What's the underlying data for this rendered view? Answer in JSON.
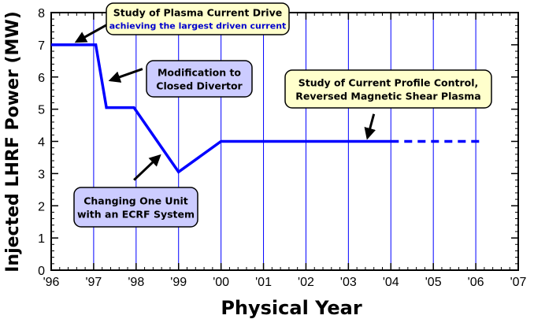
{
  "chart_data": {
    "type": "line",
    "title": "",
    "xlabel": "Physical Year",
    "ylabel": "Injected LHRF Power (MW)",
    "xlim": [
      1996,
      2007
    ],
    "ylim": [
      0,
      8
    ],
    "x_ticks": [
      {
        "value": 1996,
        "label": "'96"
      },
      {
        "value": 1997,
        "label": "'97"
      },
      {
        "value": 1998,
        "label": "'98"
      },
      {
        "value": 1999,
        "label": "'99"
      },
      {
        "value": 2000,
        "label": "'00"
      },
      {
        "value": 2001,
        "label": "'01"
      },
      {
        "value": 2002,
        "label": "'02"
      },
      {
        "value": 2003,
        "label": "'03"
      },
      {
        "value": 2004,
        "label": "'04"
      },
      {
        "value": 2005,
        "label": "'05"
      },
      {
        "value": 2006,
        "label": "'06"
      },
      {
        "value": 2007,
        "label": "'07"
      }
    ],
    "y_ticks": [
      {
        "value": 0,
        "label": "0"
      },
      {
        "value": 1,
        "label": "1"
      },
      {
        "value": 2,
        "label": "2"
      },
      {
        "value": 3,
        "label": "3"
      },
      {
        "value": 4,
        "label": "4"
      },
      {
        "value": 5,
        "label": "5"
      },
      {
        "value": 6,
        "label": "6"
      },
      {
        "value": 7,
        "label": "7"
      },
      {
        "value": 8,
        "label": "8"
      }
    ],
    "grid": "vertical",
    "series": [
      {
        "style": "solid",
        "color": "#0000ff",
        "points": [
          {
            "x": 1996.0,
            "y": 7.0
          },
          {
            "x": 1997.05,
            "y": 7.0
          },
          {
            "x": 1997.3,
            "y": 5.05
          },
          {
            "x": 1997.95,
            "y": 5.05
          },
          {
            "x": 1999.0,
            "y": 3.05
          },
          {
            "x": 2000.0,
            "y": 4.0
          },
          {
            "x": 2004.0,
            "y": 4.0
          }
        ]
      },
      {
        "style": "dashed",
        "color": "#0000ff",
        "points": [
          {
            "x": 2004.0,
            "y": 4.0
          },
          {
            "x": 2006.2,
            "y": 4.0
          }
        ]
      }
    ],
    "annotations": [
      {
        "id": "plasma-current-drive",
        "lines": [
          "Study of Plasma Current Drive"
        ],
        "sub": "achieving the largest driven current",
        "fill": "#ffffcc",
        "arrow": {
          "from": [
            1997.35,
            7.65
          ],
          "to": [
            1996.6,
            7.1
          ]
        }
      },
      {
        "id": "closed-divertor",
        "lines": [
          "Modification to",
          "Closed Divertor"
        ],
        "fill": "#ccccff",
        "arrow": {
          "from": [
            1998.15,
            6.25
          ],
          "to": [
            1997.4,
            5.9
          ]
        }
      },
      {
        "id": "current-profile-control",
        "lines": [
          "Study of Current Profile Control,",
          "Reversed Magnetic Shear Plasma"
        ],
        "fill": "#ffffcc",
        "arrow": {
          "from": [
            2003.6,
            4.85
          ],
          "to": [
            2003.45,
            4.12
          ]
        }
      },
      {
        "id": "ecrf-system",
        "lines": [
          "Changing One Unit",
          "with an ECRF System"
        ],
        "fill": "#ccccff",
        "arrow": {
          "from": [
            1997.95,
            2.8
          ],
          "to": [
            1998.55,
            3.55
          ]
        }
      }
    ]
  }
}
